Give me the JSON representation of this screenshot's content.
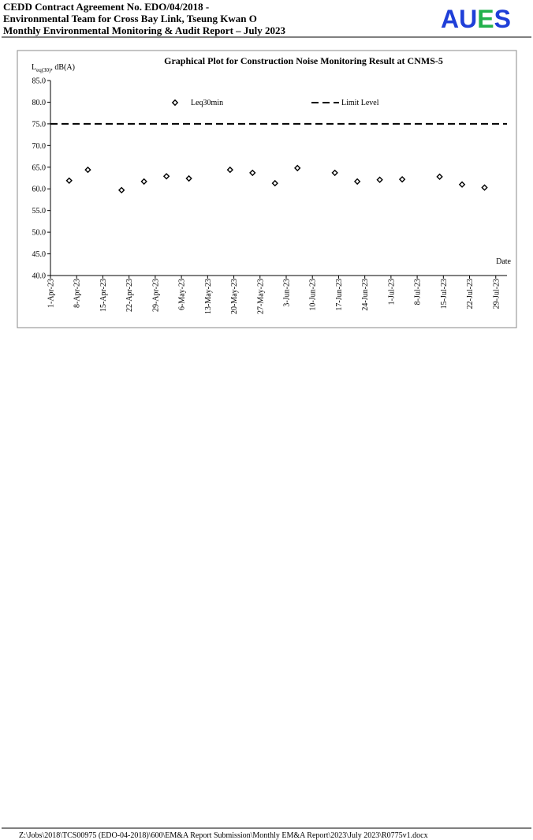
{
  "header": {
    "lines": [
      "CEDD Contract Agreement No. EDO/04/2018 -",
      "Environmental Team for Cross Bay Link, Tseung Kwan O",
      "Monthly Environmental Monitoring & Audit Report – July 2023"
    ],
    "logo": [
      "A",
      "U",
      "E",
      "S"
    ]
  },
  "chart_data": {
    "type": "scatter",
    "title": "Graphical Plot for Construction Noise Monitoring Result at CNMS-5",
    "ylabel": {
      "main": "L",
      "sub": "eq(30)",
      "rest": ", dB(A)"
    },
    "xlabel": "Date",
    "ylim": [
      40,
      85
    ],
    "yticks": [
      {
        "value": 40,
        "label": "40.0"
      },
      {
        "value": 45,
        "label": "45.0"
      },
      {
        "value": 50,
        "label": "50.0"
      },
      {
        "value": 55,
        "label": "55.0"
      },
      {
        "value": 60,
        "label": "60.0"
      },
      {
        "value": 65,
        "label": "65.0"
      },
      {
        "value": 70,
        "label": "70.0"
      },
      {
        "value": 75,
        "label": "75.0"
      },
      {
        "value": 80,
        "label": "80.0"
      },
      {
        "value": 85,
        "label": "85.0"
      }
    ],
    "xlim": [
      "2023-04-01",
      "2023-08-01"
    ],
    "xticks": [
      {
        "value": "2023-04-01",
        "label": "1-Apr-23"
      },
      {
        "value": "2023-04-08",
        "label": "8-Apr-23"
      },
      {
        "value": "2023-04-15",
        "label": "15-Apr-23"
      },
      {
        "value": "2023-04-22",
        "label": "22-Apr-23"
      },
      {
        "value": "2023-04-29",
        "label": "29-Apr-23"
      },
      {
        "value": "2023-05-06",
        "label": "6-May-23"
      },
      {
        "value": "2023-05-13",
        "label": "13-May-23"
      },
      {
        "value": "2023-05-20",
        "label": "20-May-23"
      },
      {
        "value": "2023-05-27",
        "label": "27-May-23"
      },
      {
        "value": "2023-06-03",
        "label": "3-Jun-23"
      },
      {
        "value": "2023-06-10",
        "label": "10-Jun-23"
      },
      {
        "value": "2023-06-17",
        "label": "17-Jun-23"
      },
      {
        "value": "2023-06-24",
        "label": "24-Jun-23"
      },
      {
        "value": "2023-07-01",
        "label": "1-Jul-23"
      },
      {
        "value": "2023-07-08",
        "label": "8-Jul-23"
      },
      {
        "value": "2023-07-15",
        "label": "15-Jul-23"
      },
      {
        "value": "2023-07-22",
        "label": "22-Jul-23"
      },
      {
        "value": "2023-07-29",
        "label": "29-Jul-23"
      }
    ],
    "series": [
      {
        "name": "Leq30min",
        "color": "#000000",
        "x": [
          "2023-04-06",
          "2023-04-11",
          "2023-04-20",
          "2023-04-26",
          "2023-05-02",
          "2023-05-08",
          "2023-05-19",
          "2023-05-25",
          "2023-05-31",
          "2023-06-06",
          "2023-06-16",
          "2023-06-22",
          "2023-06-28",
          "2023-07-04",
          "2023-07-14",
          "2023-07-20",
          "2023-07-26"
        ],
        "values": [
          61.9,
          64.4,
          59.7,
          61.7,
          62.9,
          62.4,
          64.4,
          63.7,
          61.3,
          64.8,
          63.7,
          61.7,
          62.1,
          62.2,
          62.8,
          61.0,
          60.3
        ]
      }
    ],
    "limit_line": {
      "name": "Limit Level",
      "value": 75,
      "color": "#000000",
      "dashed": true
    },
    "grid": false
  },
  "footer": {
    "path": "Z:\\Jobs\\2018\\TCS00975 (EDO-04-2018)\\600\\EM&A Report Submission\\Monthly EM&A Report\\2023\\July 2023\\R0775v1.docx"
  }
}
